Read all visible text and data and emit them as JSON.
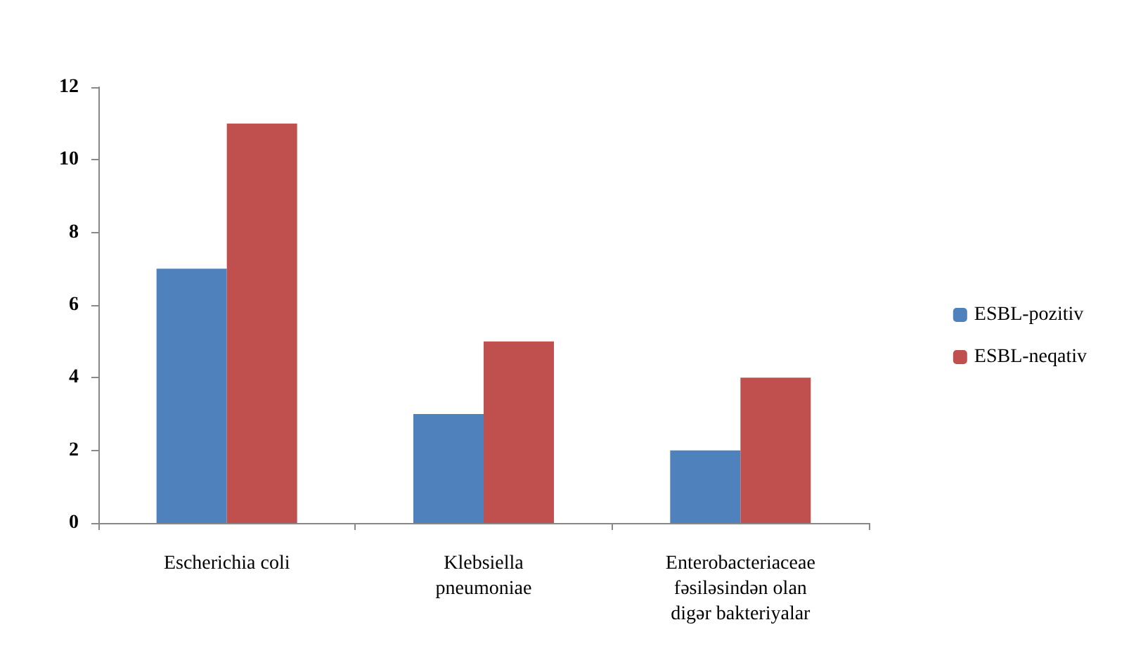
{
  "chart_data": {
    "type": "bar",
    "categories": [
      "Escherichia coli",
      "Klebsiella pneumoniae",
      "Enterobacteriaceae fəsiləsindən olan digər bakteriyalar"
    ],
    "series": [
      {
        "name": "ESBL-pozitiv",
        "color": "#4f81bd",
        "values": [
          7,
          3,
          2
        ]
      },
      {
        "name": "ESBL-neqativ",
        "color": "#c0504d",
        "values": [
          11,
          5,
          4
        ]
      }
    ],
    "ylim": [
      0,
      12
    ],
    "yticks": [
      0,
      2,
      4,
      6,
      8,
      10,
      12
    ],
    "grid": false,
    "legend": "right"
  }
}
